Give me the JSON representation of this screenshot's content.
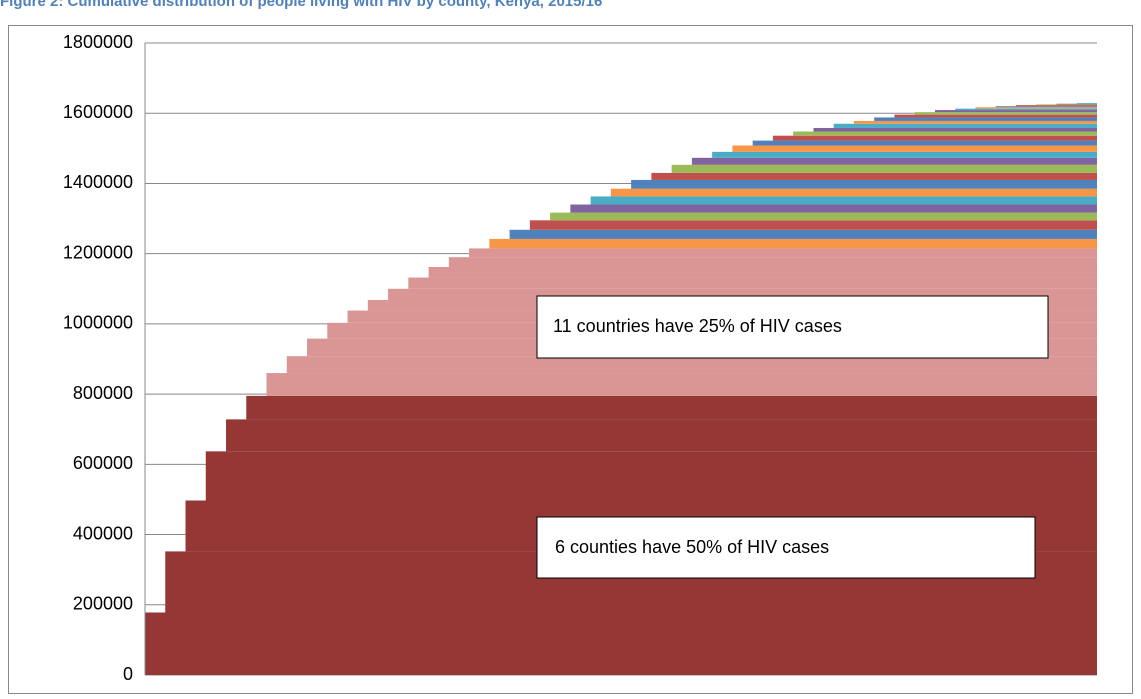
{
  "chart_data": {
    "type": "cumulative_step",
    "title": "Figure 2: Cumulative distribution of people living with HIV by county, Kenya, 2015/16",
    "categories": [
      null,
      null,
      null,
      null,
      null,
      null,
      null,
      null,
      null,
      null,
      null,
      null,
      null,
      null,
      null,
      null,
      null,
      null,
      null,
      null,
      null,
      null,
      null,
      null,
      null,
      null,
      null,
      null,
      null,
      null,
      null,
      null,
      null,
      null,
      null,
      null,
      null,
      null,
      null,
      null,
      null,
      null,
      null,
      null,
      null,
      null,
      null
    ],
    "values": [
      178000,
      174000,
      145000,
      140000,
      91000,
      67000,
      65000,
      48000,
      50000,
      45000,
      35000,
      30000,
      32000,
      32000,
      30000,
      28000,
      25000,
      27000,
      26000,
      27000,
      22000,
      23000,
      23000,
      22000,
      25000,
      20000,
      23000,
      20000,
      17000,
      18000,
      14000,
      14000,
      12000,
      10000,
      12000,
      8000,
      10000,
      8000,
      7000,
      6000,
      4000,
      4000,
      3000,
      3000,
      2000,
      2000,
      2000
    ],
    "colors": [
      "#953735",
      "#953735",
      "#953735",
      "#953735",
      "#953735",
      "#953735",
      "#d99694",
      "#d99694",
      "#d99694",
      "#d99694",
      "#d99694",
      "#d99694",
      "#d99694",
      "#d99694",
      "#d99694",
      "#d99694",
      "#d99694",
      "#f79646",
      "#4f81bd",
      "#c0504d",
      "#9bbb59",
      "#8064a2",
      "#4bacc6",
      "#f79646",
      "#4f81bd",
      "#c0504d",
      "#9bbb59",
      "#8064a2",
      "#4bacc6",
      "#f79646",
      "#4f81bd",
      "#c0504d",
      "#9bbb59",
      "#8064a2",
      "#4bacc6",
      "#f79646",
      "#4f81bd",
      "#c0504d",
      "#9bbb59",
      "#8064a2",
      "#4bacc6",
      "#f79646",
      "#4f81bd",
      "#c0504d",
      "#9bbb59",
      "#8064a2",
      "#4bacc6"
    ],
    "ylim": [
      0,
      1800000
    ],
    "yticks": [
      0,
      200000,
      400000,
      600000,
      800000,
      1000000,
      1200000,
      1400000,
      1600000,
      1800000
    ],
    "grid": true,
    "annotations": [
      "11 countries have 25% of HIV cases",
      "6 counties have 50% of HIV cases"
    ]
  }
}
